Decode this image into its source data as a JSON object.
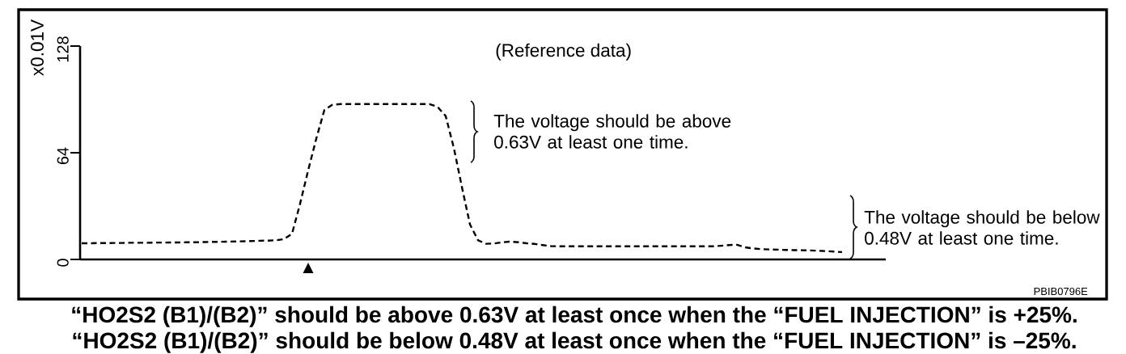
{
  "chart_data": {
    "type": "line",
    "ylabel": "x0.01V",
    "categories": [
      null,
      null,
      null,
      null,
      null,
      null,
      null,
      null,
      null,
      null,
      null,
      null,
      null,
      null,
      null,
      null,
      null,
      null,
      null,
      null,
      null,
      null,
      null,
      null,
      null,
      null,
      null,
      null,
      null,
      null,
      null,
      null,
      null,
      null,
      null,
      null,
      null,
      null,
      null,
      null,
      null,
      null,
      null,
      null,
      null,
      null,
      null,
      null,
      null,
      null,
      null,
      null,
      null,
      null,
      null,
      null,
      null,
      null,
      null,
      null,
      null,
      null,
      null,
      null,
      null,
      null,
      null,
      null,
      null,
      null,
      null,
      null,
      null,
      null,
      null,
      null,
      null,
      null,
      null,
      null,
      null,
      null,
      null,
      null,
      null,
      null,
      null,
      null,
      null,
      null,
      null,
      null,
      null,
      null,
      null
    ],
    "values": [
      9.7,
      9.7,
      9.8,
      9.8,
      9.9,
      9.9,
      10.0,
      10.0,
      10.0,
      10.1,
      10.1,
      10.2,
      10.2,
      10.3,
      10.3,
      10.4,
      10.5,
      10.6,
      10.7,
      10.8,
      10.9,
      11.0,
      11.2,
      11.3,
      11.5,
      12.2,
      15.4,
      33.5,
      53.5,
      72.5,
      89.6,
      92.8,
      93.2,
      93.2,
      93.2,
      93.2,
      93.2,
      93.2,
      93.2,
      93.2,
      93.2,
      93.2,
      93.2,
      93.2,
      91.5,
      86.0,
      67.0,
      43.5,
      21.0,
      11.5,
      9.4,
      9.6,
      10.3,
      10.7,
      10.3,
      9.7,
      9.3,
      8.6,
      8.0,
      7.9,
      7.9,
      7.9,
      7.9,
      7.9,
      7.9,
      7.9,
      7.9,
      7.9,
      7.9,
      7.9,
      7.9,
      7.9,
      7.9,
      7.9,
      7.9,
      7.9,
      7.9,
      7.9,
      7.9,
      8.2,
      8.6,
      8.8,
      7.3,
      6.6,
      6.2,
      6.0,
      5.9,
      5.7,
      5.6,
      5.5,
      5.4,
      5.2,
      5.0,
      4.7,
      4.4
    ],
    "color": "#000000",
    "line_style": "dashed",
    "ylim": [
      0,
      128
    ],
    "yticks": [
      0,
      64,
      128
    ],
    "tick_labels": "y",
    "annotations": [
      "(Reference data)",
      "The voltage should be above 0.63V at least one time.",
      "The voltage should be below 0.48V at least one time.",
      "PBIB0796E",
      "“HO2S2 (B1)/(B2)” should be above 0.63V at least once when the “FUEL INJECTION” is +25%.",
      "“HO2S2 (B1)/(B2)” should be below 0.48V at least once when the “FUEL INJECTION” is –25%."
    ]
  }
}
